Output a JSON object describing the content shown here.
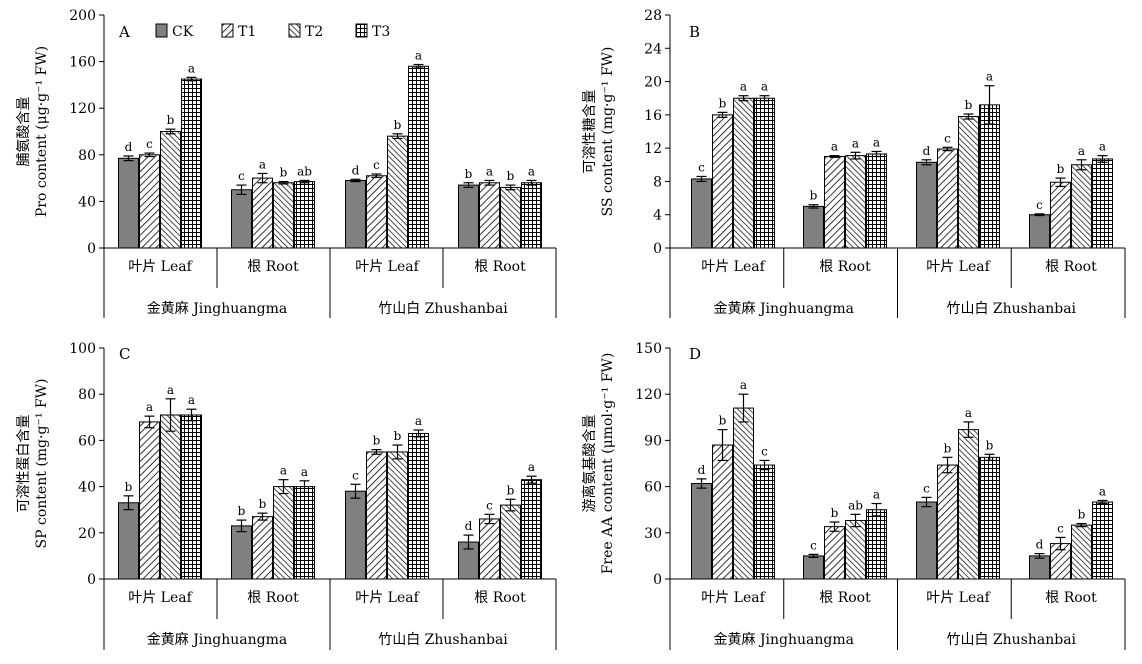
{
  "figure": {
    "legend": [
      "CK",
      "T1",
      "T2",
      "T3"
    ],
    "series_patterns": [
      "solid",
      "diag-fwd",
      "diag-back",
      "grid"
    ],
    "colors": {
      "ck": "#808080",
      "stroke": "#000000",
      "bg": "#ffffff"
    },
    "tissues": [
      "叶片 Leaf",
      "根 Root"
    ],
    "varieties": [
      "金黄麻 Jinghuangma",
      "竹山白 Zhushanbai"
    ]
  },
  "chart_data": [
    {
      "type": "bar",
      "panel": "A",
      "ylabel_zh": "脯氨酸含量",
      "ylabel_en": "Pro content (μg·g⁻¹ FW)",
      "ylim": [
        0,
        200
      ],
      "yticks": [
        0,
        40,
        80,
        120,
        160,
        200
      ],
      "categories": [
        "叶片 Leaf",
        "根 Root",
        "叶片 Leaf",
        "根 Root"
      ],
      "series": [
        {
          "name": "CK",
          "values": [
            77,
            50,
            58,
            54
          ],
          "errors": [
            2,
            4,
            1,
            2
          ],
          "letters": [
            "d",
            "c",
            "d",
            "b"
          ]
        },
        {
          "name": "T1",
          "values": [
            80,
            60,
            62,
            56
          ],
          "errors": [
            1.5,
            4,
            1.5,
            2
          ],
          "letters": [
            "c",
            "a",
            "c",
            "a"
          ]
        },
        {
          "name": "T2",
          "values": [
            100,
            56,
            96,
            52
          ],
          "errors": [
            2,
            1,
            2,
            2
          ],
          "letters": [
            "b",
            "b",
            "b",
            "b"
          ]
        },
        {
          "name": "T3",
          "values": [
            145,
            57,
            156,
            56
          ],
          "errors": [
            1.5,
            1,
            1.5,
            2
          ],
          "letters": [
            "a",
            "ab",
            "a",
            "a"
          ]
        }
      ]
    },
    {
      "type": "bar",
      "panel": "B",
      "ylabel_zh": "可溶性糖含量",
      "ylabel_en": "SS content (mg·g⁻¹ FW)",
      "ylim": [
        0,
        28
      ],
      "yticks": [
        0,
        4,
        8,
        12,
        16,
        20,
        24,
        28
      ],
      "categories": [
        "叶片 Leaf",
        "根 Root",
        "叶片 Leaf",
        "根 Root"
      ],
      "series": [
        {
          "name": "CK",
          "values": [
            8.3,
            5.0,
            10.3,
            4.0
          ],
          "errors": [
            0.3,
            0.2,
            0.3,
            0.1
          ],
          "letters": [
            "c",
            "b",
            "d",
            "c"
          ]
        },
        {
          "name": "T1",
          "values": [
            16.0,
            11.0,
            11.9,
            7.9
          ],
          "errors": [
            0.3,
            0.1,
            0.2,
            0.5
          ],
          "letters": [
            "b",
            "a",
            "c",
            "b"
          ]
        },
        {
          "name": "T2",
          "values": [
            18.0,
            11.1,
            15.8,
            10.0
          ],
          "errors": [
            0.3,
            0.4,
            0.3,
            0.6
          ],
          "letters": [
            "a",
            "a",
            "b",
            "a"
          ]
        },
        {
          "name": "T3",
          "values": [
            18.0,
            11.3,
            17.2,
            10.7
          ],
          "errors": [
            0.3,
            0.3,
            2.3,
            0.4
          ],
          "letters": [
            "a",
            "a",
            "a",
            "a"
          ]
        }
      ]
    },
    {
      "type": "bar",
      "panel": "C",
      "ylabel_zh": "可溶性蛋白含量",
      "ylabel_en": "SP content (mg·g⁻¹ FW)",
      "ylim": [
        0,
        100
      ],
      "yticks": [
        0,
        20,
        40,
        60,
        80,
        100
      ],
      "categories": [
        "叶片 Leaf",
        "根 Root",
        "叶片 Leaf",
        "根 Root"
      ],
      "series": [
        {
          "name": "CK",
          "values": [
            33,
            23,
            38,
            16
          ],
          "errors": [
            3,
            2.5,
            3,
            3
          ],
          "letters": [
            "b",
            "b",
            "c",
            "d"
          ]
        },
        {
          "name": "T1",
          "values": [
            68,
            27,
            55,
            26
          ],
          "errors": [
            2.5,
            1.5,
            1,
            2
          ],
          "letters": [
            "a",
            "b",
            "b",
            "c"
          ]
        },
        {
          "name": "T2",
          "values": [
            71,
            40,
            55,
            32
          ],
          "errors": [
            7,
            3,
            3,
            2.5
          ],
          "letters": [
            "a",
            "a",
            "b",
            "b"
          ]
        },
        {
          "name": "T3",
          "values": [
            71,
            40,
            63,
            43
          ],
          "errors": [
            2.5,
            2.5,
            1.5,
            1.5
          ],
          "letters": [
            "a",
            "a",
            "a",
            "a"
          ]
        }
      ]
    },
    {
      "type": "bar",
      "panel": "D",
      "ylabel_zh": "游离氨基酸含量",
      "ylabel_en": "Free AA content (μmol·g⁻¹ FW)",
      "ylim": [
        0,
        150
      ],
      "yticks": [
        0,
        30,
        60,
        90,
        120,
        150
      ],
      "categories": [
        "叶片 Leaf",
        "根 Root",
        "叶片 Leaf",
        "根 Root"
      ],
      "series": [
        {
          "name": "CK",
          "values": [
            62,
            15,
            50,
            15
          ],
          "errors": [
            3,
            1,
            3,
            1.5
          ],
          "letters": [
            "d",
            "c",
            "c",
            "d"
          ]
        },
        {
          "name": "T1",
          "values": [
            87,
            34,
            74,
            23
          ],
          "errors": [
            10,
            3,
            5,
            4
          ],
          "letters": [
            "b",
            "b",
            "b",
            "c"
          ]
        },
        {
          "name": "T2",
          "values": [
            111,
            38,
            97,
            35
          ],
          "errors": [
            9,
            4,
            5,
            1
          ],
          "letters": [
            "a",
            "ab",
            "a",
            "b"
          ]
        },
        {
          "name": "T3",
          "values": [
            74,
            45,
            79,
            50
          ],
          "errors": [
            3,
            4,
            2,
            1
          ],
          "letters": [
            "c",
            "a",
            "b",
            "a"
          ]
        }
      ]
    }
  ]
}
